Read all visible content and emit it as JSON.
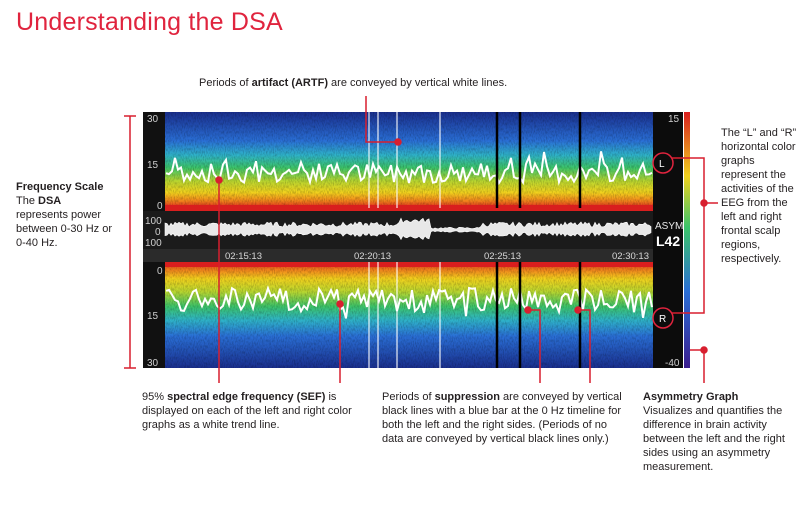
{
  "title": "Understanding the DSA",
  "colors": {
    "accent": "#e0243e",
    "leader": "#d81f2f"
  },
  "annotations": {
    "artifact": {
      "pre": "Periods of ",
      "bold": "artifact (ARTF)",
      "post": " are conveyed by vertical white lines."
    },
    "frequency_scale": {
      "heading": "Frequency Scale",
      "line1_pre": "The ",
      "line1_bold": "DSA",
      "rest": "represents power between 0-30 Hz or 0-40 Hz."
    },
    "lr_graphs": {
      "text": "The “L” and “R” horizontal color graphs represent the activities of the EEG from the left and right frontal scalp regions, respectively."
    },
    "sef": {
      "pre": "95% ",
      "bold": "spectral edge frequency (SEF)",
      "post": " is displayed on each of the left and right color graphs as a white trend line."
    },
    "suppression": {
      "pre": "Periods of ",
      "bold": "suppression",
      "post": " are conveyed by vertical black lines with a blue bar at the 0 Hz timeline for both the left and the right sides. (Periods of no data are conveyed by vertical black lines only.)"
    },
    "asymmetry": {
      "heading": "Asymmetry Graph",
      "text": "Visualizes and quantifies the difference in brain activity between the left and the right sides using an asymmetry measurement."
    }
  },
  "dsa": {
    "left_axis": {
      "top_30": "30",
      "top_15": "15",
      "top_0": "0",
      "bot_0": "0",
      "bot_15": "15",
      "bot_30": "30"
    },
    "eeg_axis": {
      "upper": "100",
      "mid": "0",
      "lower": "100"
    },
    "times": [
      "02:15:13",
      "02:20:13",
      "02:25:13",
      "02:30:13"
    ],
    "asym_label": "ASYM",
    "asym_value": "L42",
    "asym_scale_top": "15",
    "asym_scale_bottom": "-40",
    "left_marker": "L",
    "right_marker": "R"
  }
}
